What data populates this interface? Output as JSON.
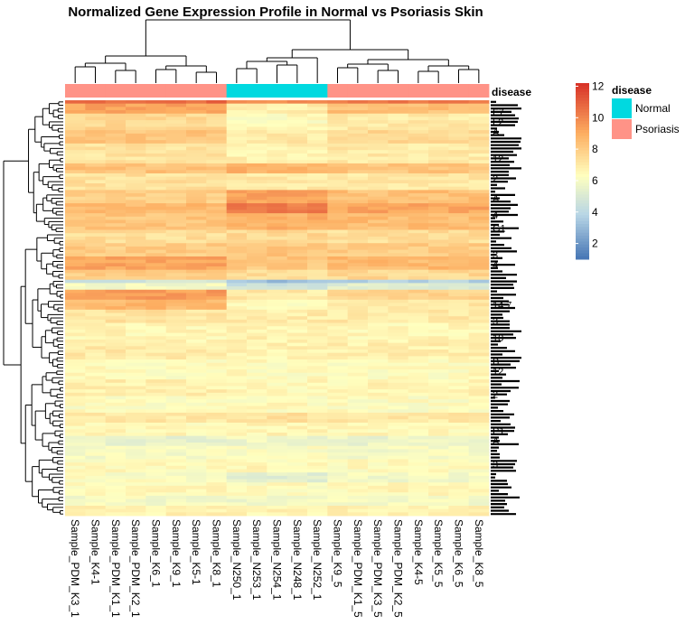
{
  "chart_data": {
    "type": "heatmap",
    "title": "Normalized Gene Expression Profile in Normal vs Psoriasis Skin",
    "columns": [
      {
        "sample": "Sample_PDM_K3_1",
        "disease": "Psoriasis",
        "group": 0
      },
      {
        "sample": "Sample_K4-1",
        "disease": "Psoriasis",
        "group": 0
      },
      {
        "sample": "Sample_PDM_K1_1",
        "disease": "Psoriasis",
        "group": 0
      },
      {
        "sample": "Sample_PDM_K2_1",
        "disease": "Psoriasis",
        "group": 0
      },
      {
        "sample": "Sample_K6_1",
        "disease": "Psoriasis",
        "group": 0
      },
      {
        "sample": "Sample_K9_1",
        "disease": "Psoriasis",
        "group": 0
      },
      {
        "sample": "Sample_K5-1",
        "disease": "Psoriasis",
        "group": 0
      },
      {
        "sample": "Sample_K8_1",
        "disease": "Psoriasis",
        "group": 0
      },
      {
        "sample": "Sample_N250_1",
        "disease": "Normal",
        "group": 1
      },
      {
        "sample": "Sample_N253_1",
        "disease": "Normal",
        "group": 1
      },
      {
        "sample": "Sample_N254_1",
        "disease": "Normal",
        "group": 1
      },
      {
        "sample": "Sample_N248_1",
        "disease": "Normal",
        "group": 1
      },
      {
        "sample": "Sample_N252_1",
        "disease": "Normal",
        "group": 1
      },
      {
        "sample": "Sample_K9_5",
        "disease": "Psoriasis",
        "group": 2
      },
      {
        "sample": "Sample_PDM_K1_5",
        "disease": "Psoriasis",
        "group": 2
      },
      {
        "sample": "Sample_PDM_K3_5",
        "disease": "Psoriasis",
        "group": 2
      },
      {
        "sample": "Sample_PDM_K2_5",
        "disease": "Psoriasis",
        "group": 2
      },
      {
        "sample": "Sample_K4-5",
        "disease": "Psoriasis",
        "group": 2
      },
      {
        "sample": "Sample_K5_5",
        "disease": "Psoriasis",
        "group": 2
      },
      {
        "sample": "Sample_K6_5",
        "disease": "Psoriasis",
        "group": 2
      },
      {
        "sample": "Sample_K8_5",
        "disease": "Psoriasis",
        "group": 2
      }
    ],
    "row_blocks": [
      {
        "rows": 1,
        "v": [
          10.8,
          9.8,
          10.5
        ]
      },
      {
        "rows": 3,
        "v": [
          9.2,
          6.8,
          8.4
        ]
      },
      {
        "rows": 5,
        "v": [
          7.6,
          6.4,
          7.0
        ]
      },
      {
        "rows": 4,
        "v": [
          8.2,
          7.0,
          7.6
        ]
      },
      {
        "rows": 6,
        "v": [
          7.2,
          6.8,
          7.0
        ]
      },
      {
        "rows": 3,
        "v": [
          8.3,
          8.8,
          8.3
        ]
      },
      {
        "rows": 5,
        "v": [
          7.3,
          7.0,
          7.1
        ]
      },
      {
        "rows": 4,
        "v": [
          7.9,
          9.3,
          8.4
        ]
      },
      {
        "rows": 3,
        "v": [
          8.6,
          10.2,
          9.2
        ]
      },
      {
        "rows": 5,
        "v": [
          8.2,
          8.9,
          8.5
        ]
      },
      {
        "rows": 4,
        "v": [
          7.4,
          7.6,
          7.4
        ]
      },
      {
        "rows": 4,
        "v": [
          8.0,
          8.2,
          8.0
        ]
      },
      {
        "rows": 4,
        "v": [
          9.2,
          8.2,
          8.6
        ]
      },
      {
        "rows": 3,
        "v": [
          8.0,
          7.4,
          7.6
        ]
      },
      {
        "rows": 1,
        "v": [
          4.6,
          3.2,
          3.8
        ]
      },
      {
        "rows": 2,
        "v": [
          6.0,
          4.6,
          5.2
        ]
      },
      {
        "rows": 3,
        "v": [
          9.4,
          7.0,
          7.8
        ]
      },
      {
        "rows": 3,
        "v": [
          8.6,
          6.4,
          7.1
        ]
      },
      {
        "rows": 4,
        "v": [
          7.2,
          6.9,
          7.0
        ]
      },
      {
        "rows": 6,
        "v": [
          6.6,
          6.7,
          6.6
        ]
      },
      {
        "rows": 5,
        "v": [
          7.0,
          6.7,
          6.8
        ]
      },
      {
        "rows": 6,
        "v": [
          6.4,
          6.4,
          6.4
        ]
      },
      {
        "rows": 5,
        "v": [
          6.8,
          6.5,
          6.6
        ]
      },
      {
        "rows": 5,
        "v": [
          6.3,
          6.4,
          6.3
        ]
      },
      {
        "rows": 3,
        "v": [
          7.0,
          7.3,
          7.0
        ]
      },
      {
        "rows": 4,
        "v": [
          6.5,
          6.6,
          6.5
        ]
      },
      {
        "rows": 3,
        "v": [
          5.6,
          5.8,
          5.6
        ]
      },
      {
        "rows": 4,
        "v": [
          6.0,
          6.2,
          6.0
        ]
      },
      {
        "rows": 4,
        "v": [
          6.4,
          6.5,
          6.4
        ]
      },
      {
        "rows": 3,
        "v": [
          6.2,
          5.4,
          5.9
        ]
      },
      {
        "rows": 4,
        "v": [
          6.5,
          6.4,
          6.5
        ]
      },
      {
        "rows": 3,
        "v": [
          6.0,
          5.9,
          6.0
        ]
      },
      {
        "rows": 3,
        "v": [
          6.7,
          6.6,
          6.7
        ]
      }
    ],
    "row_labels": [
      {
        "text": "F7",
        "row": 3
      },
      {
        "text": "L2",
        "row": 6
      },
      {
        "text": "A",
        "row": 9
      },
      {
        "text": "12",
        "row": 17
      },
      {
        "text": "2",
        "row": 23
      },
      {
        "text": "A",
        "row": 29
      },
      {
        "text": "4",
        "row": 34
      },
      {
        "text": "G1",
        "row": 38
      },
      {
        "text": "3",
        "row": 46
      },
      {
        "text": "4",
        "row": 49
      },
      {
        "text": "14.7",
        "row": 61
      },
      {
        "text": "3",
        "row": 66
      },
      {
        "text": "10",
        "row": 71
      },
      {
        "text": "B",
        "row": 78
      },
      {
        "text": "12",
        "row": 81
      },
      {
        "text": "2",
        "row": 88
      },
      {
        "text": "P1",
        "row": 99
      },
      {
        "text": "A",
        "row": 102
      },
      {
        "text": "3",
        "row": 109
      }
    ],
    "color_scale": {
      "min": 1.0,
      "max": 12.2,
      "stops": [
        {
          "value": 1.0,
          "color": "#4575b4"
        },
        {
          "value": 3.8,
          "color": "#b7d5e6"
        },
        {
          "value": 6.3,
          "color": "#ffffbf"
        },
        {
          "value": 9.0,
          "color": "#fdae61"
        },
        {
          "value": 12.2,
          "color": "#d73027"
        }
      ],
      "ticks": [
        "12",
        "10",
        "8",
        "6",
        "4",
        "2"
      ],
      "tick_values": [
        12,
        10,
        8,
        6,
        4,
        2
      ]
    },
    "annotation": {
      "name": "disease",
      "legend_title": "disease",
      "levels": [
        {
          "label": "Normal",
          "color": "#00d9e0"
        },
        {
          "label": "Psoriasis",
          "color": "#ff9387"
        }
      ]
    },
    "dendrograms": {
      "columns": true,
      "rows": true
    }
  }
}
